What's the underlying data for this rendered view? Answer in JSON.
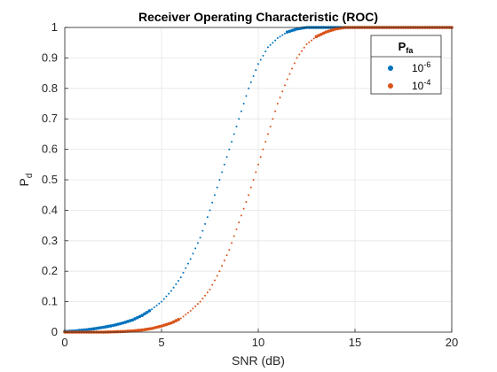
{
  "chart_data": {
    "type": "scatter",
    "title": "Receiver Operating Characteristic (ROC)",
    "xlabel": "SNR (dB)",
    "ylabel": {
      "base": "P",
      "sub": "d"
    },
    "xlim": [
      0,
      20
    ],
    "ylim": [
      0,
      1
    ],
    "xticks": [
      0,
      5,
      10,
      15,
      20
    ],
    "xtick_labels": [
      "0",
      "5",
      "10",
      "15",
      "20"
    ],
    "yticks": [
      0,
      0.1,
      0.2,
      0.3,
      0.4,
      0.5,
      0.6,
      0.7,
      0.8,
      0.9,
      1
    ],
    "ytick_labels": [
      "0",
      "0.1",
      "0.2",
      "0.3",
      "0.4",
      "0.5",
      "0.6",
      "0.7",
      "0.8",
      "0.9",
      "1"
    ],
    "grid": true,
    "legend": {
      "placement": "top-right",
      "title": {
        "base": "P",
        "sub": "fa"
      },
      "entries": [
        {
          "base": "10",
          "sup": "-6",
          "color": "#0072BD"
        },
        {
          "base": "10",
          "sup": "-4",
          "color": "#D95319"
        }
      ]
    },
    "x": [
      0,
      0.5,
      1,
      1.5,
      2,
      2.5,
      3,
      3.5,
      4,
      4.5,
      5,
      5.5,
      6,
      6.5,
      7,
      7.5,
      8,
      8.5,
      9,
      9.5,
      10,
      10.5,
      11,
      11.5,
      12,
      12.5,
      13,
      13.5,
      14,
      14.5,
      15,
      15.5,
      16,
      16.5,
      17,
      17.5,
      18,
      18.5,
      19,
      19.5,
      20
    ],
    "series": [
      {
        "name": "10^-6",
        "color": "#0072BD",
        "values": [
          0.002,
          0.004,
          0.007,
          0.011,
          0.016,
          0.022,
          0.03,
          0.04,
          0.055,
          0.075,
          0.1,
          0.135,
          0.18,
          0.24,
          0.31,
          0.4,
          0.5,
          0.6,
          0.7,
          0.8,
          0.88,
          0.935,
          0.965,
          0.985,
          0.995,
          1.0,
          1.0,
          1.0,
          1.0,
          1.0,
          1.0,
          1.0,
          1.0,
          1.0,
          1.0,
          1.0,
          1.0,
          1.0,
          1.0,
          1.0,
          1.0
        ]
      },
      {
        "name": "10^-4",
        "color": "#D95319",
        "values": [
          0,
          0,
          0,
          0,
          0,
          0.001,
          0.002,
          0.004,
          0.007,
          0.012,
          0.02,
          0.03,
          0.045,
          0.07,
          0.1,
          0.14,
          0.2,
          0.27,
          0.36,
          0.45,
          0.55,
          0.65,
          0.75,
          0.83,
          0.9,
          0.945,
          0.97,
          0.985,
          0.995,
          1.0,
          1.0,
          1.0,
          1.0,
          1.0,
          1.0,
          1.0,
          1.0,
          1.0,
          1.0,
          1.0,
          1.0
        ]
      }
    ]
  }
}
